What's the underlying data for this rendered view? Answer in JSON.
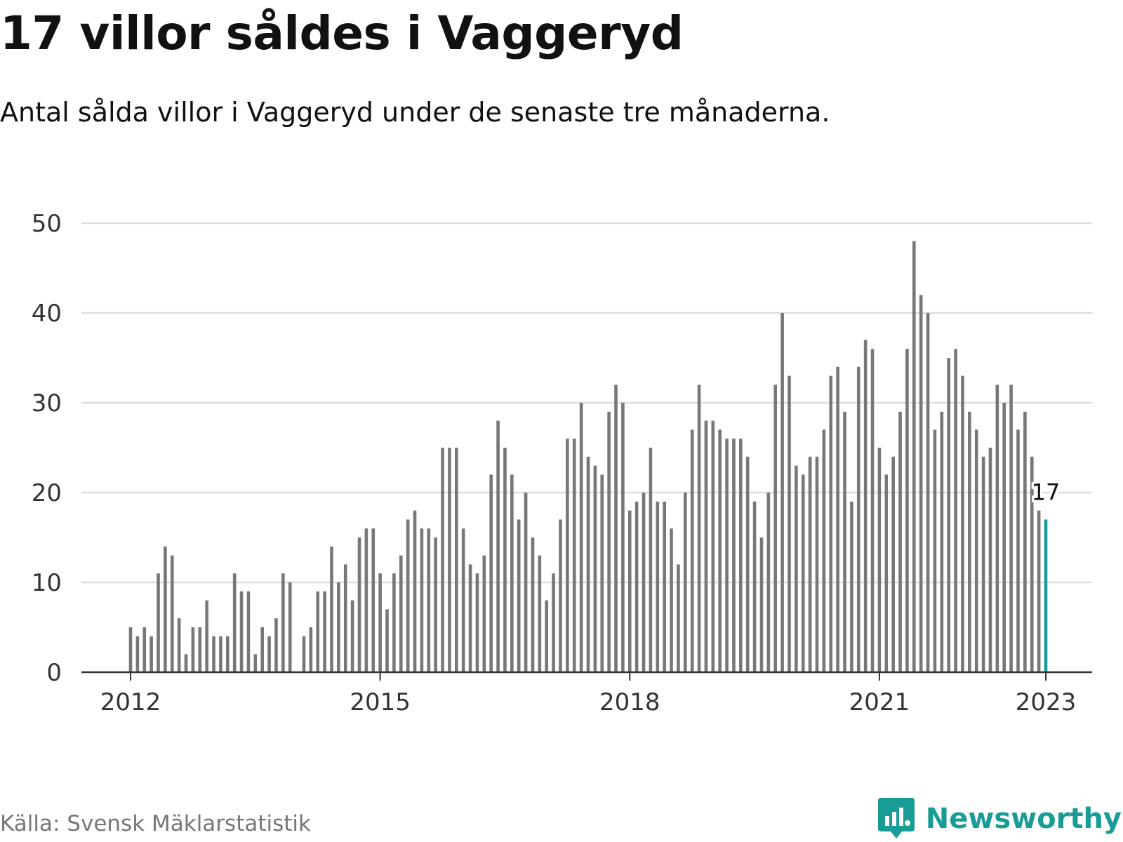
{
  "title": "17 villor såldes i Vaggeryd",
  "subtitle": "Antal sålda villor i Vaggeryd under de senaste tre månaderna.",
  "source": "Källa: Svensk Mäklarstatistik",
  "brand": {
    "name": "Newsworthy",
    "icon": "newsworthy-logo-icon"
  },
  "colors": {
    "bar": "#777777",
    "highlight": "#1a9c96",
    "grid": "#dddddd",
    "axis": "#333333",
    "brand": "#1a9c96"
  },
  "chart_data": {
    "type": "bar",
    "title": "",
    "xlabel": "",
    "ylabel": "",
    "ylim": [
      0,
      50
    ],
    "yticks": [
      "0",
      "10",
      "20",
      "30",
      "40",
      "50"
    ],
    "xticks": [
      "2012",
      "2015",
      "2018",
      "2021",
      "2023"
    ],
    "grid": true,
    "x_start": "2012-01",
    "x_end": "2023-01",
    "values": [
      5,
      4,
      5,
      4,
      11,
      14,
      13,
      6,
      2,
      5,
      5,
      8,
      4,
      4,
      4,
      11,
      9,
      9,
      2,
      5,
      4,
      6,
      11,
      10,
      0,
      4,
      5,
      9,
      9,
      14,
      10,
      12,
      8,
      15,
      16,
      16,
      11,
      7,
      11,
      13,
      17,
      18,
      16,
      16,
      15,
      25,
      25,
      25,
      16,
      12,
      11,
      13,
      22,
      28,
      25,
      22,
      17,
      20,
      15,
      13,
      8,
      11,
      17,
      26,
      26,
      30,
      24,
      23,
      22,
      29,
      32,
      30,
      18,
      19,
      20,
      25,
      19,
      19,
      16,
      12,
      20,
      27,
      32,
      28,
      28,
      27,
      26,
      26,
      26,
      24,
      19,
      15,
      20,
      32,
      40,
      33,
      23,
      22,
      24,
      24,
      27,
      33,
      34,
      29,
      19,
      34,
      37,
      36,
      25,
      22,
      24,
      29,
      36,
      48,
      42,
      40,
      27,
      29,
      35,
      36,
      33,
      29,
      27,
      24,
      25,
      32,
      30,
      32,
      27,
      29,
      24,
      18,
      17
    ],
    "highlight_label": "17"
  }
}
